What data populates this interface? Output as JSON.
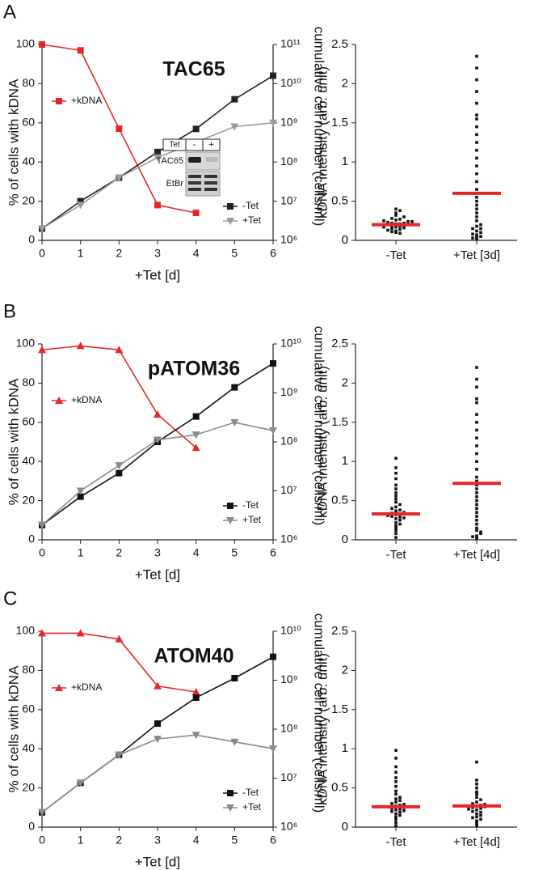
{
  "chart_data": [
    {
      "type": "line",
      "panel": "A",
      "title": "TAC65",
      "x": [
        0,
        1,
        2,
        3,
        4,
        5,
        6
      ],
      "xlim": [
        0,
        6
      ],
      "xticks": [
        0,
        1,
        2,
        3,
        4,
        5,
        6
      ],
      "ylim": [
        0,
        100
      ],
      "yticks": [
        0,
        20,
        40,
        60,
        80,
        100
      ],
      "y2scale": "log",
      "y2lim": [
        1000000,
        100000000000
      ],
      "y2ticks": [
        {
          "value": 1000000,
          "label": "10⁶"
        },
        {
          "value": 10000000,
          "label": "10⁷"
        },
        {
          "value": 100000000,
          "label": "10⁸"
        },
        {
          "value": 1000000000,
          "label": "10⁹"
        },
        {
          "value": 10000000000,
          "label": "10¹⁰"
        },
        {
          "value": 100000000000,
          "label": "10¹¹"
        }
      ],
      "xlabel": "+Tet [d]",
      "ylabel": "% of cells with kDNA",
      "y2label": "cumulative cell number (cells/ml)",
      "series": [
        {
          "name": "+kDNA",
          "color": "#e8262a",
          "marker": "square",
          "values": [
            100,
            97,
            57,
            18,
            14,
            null,
            null
          ]
        },
        {
          "name": "-Tet",
          "color": "#222222",
          "marker": "square",
          "axis": "y2",
          "values": [
            2000000,
            10000000,
            40000000,
            180000000,
            700000000,
            4000000000,
            16000000000
          ]
        },
        {
          "name": "+Tet",
          "color": "#9a9a9a",
          "marker": "triangle-down",
          "axis": "y2",
          "values": [
            2000000,
            8000000,
            40000000,
            130000000,
            320000000,
            800000000,
            1000000000
          ]
        }
      ],
      "inset": {
        "header": "Tet",
        "lanes": [
          "-",
          "+"
        ],
        "rows": [
          "TAC65",
          "EtBr"
        ]
      }
    },
    {
      "type": "strip",
      "categories": [
        "-Tet",
        "+Tet [3d]"
      ],
      "ylabel": "kDNA intensity (arb. unit)",
      "ylim": [
        0,
        2.5
      ],
      "yticks": [
        0,
        0.5,
        1,
        1.5,
        2,
        2.5
      ],
      "color": "#111111",
      "mean_color": "#e8262a",
      "groups": [
        {
          "mean": 0.2,
          "values": [
            0.1,
            0.12,
            0.14,
            0.15,
            0.16,
            0.17,
            0.18,
            0.18,
            0.19,
            0.2,
            0.2,
            0.21,
            0.21,
            0.22,
            0.22,
            0.23,
            0.24,
            0.25,
            0.26,
            0.27,
            0.28,
            0.3,
            0.32,
            0.35,
            0.38,
            0.4,
            0.13,
            0.17,
            0.2,
            0.24,
            0.09,
            0.11
          ]
        },
        {
          "mean": 0.6,
          "values": [
            0.02,
            0.04,
            0.05,
            0.07,
            0.1,
            0.12,
            0.15,
            0.18,
            0.2,
            0.25,
            0.3,
            0.35,
            0.4,
            0.45,
            0.5,
            0.55,
            0.6,
            0.65,
            0.75,
            0.85,
            0.95,
            1.05,
            1.15,
            1.25,
            1.35,
            1.45,
            1.55,
            1.6,
            1.75,
            1.9,
            2.05,
            2.2,
            2.35,
            0.08,
            0.03,
            0.15
          ]
        }
      ]
    },
    {
      "type": "line",
      "panel": "B",
      "title": "pATOM36",
      "x": [
        0,
        1,
        2,
        3,
        4,
        5,
        6
      ],
      "xlim": [
        0,
        6
      ],
      "xticks": [
        0,
        1,
        2,
        3,
        4,
        5,
        6
      ],
      "ylim": [
        0,
        100
      ],
      "yticks": [
        0,
        20,
        40,
        60,
        80,
        100
      ],
      "y2scale": "log",
      "y2lim": [
        1000000,
        10000000000
      ],
      "y2ticks": [
        {
          "value": 1000000,
          "label": "10⁶"
        },
        {
          "value": 10000000,
          "label": "10⁷"
        },
        {
          "value": 100000000,
          "label": "10⁸"
        },
        {
          "value": 1000000000,
          "label": "10⁹"
        },
        {
          "value": 10000000000,
          "label": "10¹⁰"
        }
      ],
      "xlabel": "+Tet [d]",
      "ylabel": "% of cells with kDNA",
      "y2label": "cumulative cell number (cells/ml)",
      "series": [
        {
          "name": "+kDNA",
          "color": "#e8262a",
          "marker": "triangle-up",
          "values": [
            97,
            99,
            97,
            64,
            47,
            null,
            null
          ]
        },
        {
          "name": "-Tet",
          "color": "#111111",
          "marker": "square",
          "axis": "y2",
          "values": [
            2000000,
            7600000,
            23000000,
            100000000,
            330000000,
            1300000000,
            4000000000
          ]
        },
        {
          "name": "+Tet",
          "color": "#8a8a8a",
          "marker": "triangle-down",
          "axis": "y2",
          "values": [
            2000000,
            10000000,
            33000000,
            110000000,
            140000000,
            250000000,
            170000000
          ]
        }
      ]
    },
    {
      "type": "strip",
      "categories": [
        "-Tet",
        "+Tet [4d]"
      ],
      "ylabel": "kDNA intensity (arb. unit)",
      "ylim": [
        0,
        2.5
      ],
      "yticks": [
        0,
        0.5,
        1,
        1.5,
        2,
        2.5
      ],
      "color": "#111111",
      "mean_color": "#e8262a",
      "groups": [
        {
          "mean": 0.33,
          "values": [
            0.03,
            0.08,
            0.12,
            0.15,
            0.18,
            0.2,
            0.22,
            0.25,
            0.27,
            0.29,
            0.3,
            0.32,
            0.33,
            0.34,
            0.35,
            0.37,
            0.38,
            0.4,
            0.42,
            0.45,
            0.48,
            0.52,
            0.56,
            0.6,
            0.65,
            0.7,
            0.78,
            0.85,
            0.92,
            1.04,
            0.28,
            0.31
          ]
        },
        {
          "mean": 0.72,
          "values": [
            0.02,
            0.05,
            0.08,
            0.12,
            0.15,
            0.2,
            0.25,
            0.3,
            0.35,
            0.4,
            0.45,
            0.5,
            0.55,
            0.6,
            0.65,
            0.7,
            0.75,
            0.8,
            0.9,
            1.0,
            1.1,
            1.2,
            1.3,
            1.4,
            1.5,
            1.6,
            1.75,
            1.8,
            1.95,
            2.05,
            2.2,
            0.1,
            0.04
          ]
        }
      ]
    },
    {
      "type": "line",
      "panel": "C",
      "title": "ATOM40",
      "x": [
        0,
        1,
        2,
        3,
        4,
        5,
        6
      ],
      "xlim": [
        0,
        6
      ],
      "xticks": [
        0,
        1,
        2,
        3,
        4,
        5,
        6
      ],
      "ylim": [
        0,
        100
      ],
      "yticks": [
        0,
        20,
        40,
        60,
        80,
        100
      ],
      "y2scale": "log",
      "y2lim": [
        1000000,
        10000000000
      ],
      "y2ticks": [
        {
          "value": 1000000,
          "label": "10⁶"
        },
        {
          "value": 10000000,
          "label": "10⁷"
        },
        {
          "value": 100000000,
          "label": "10⁸"
        },
        {
          "value": 1000000000,
          "label": "10⁹"
        },
        {
          "value": 10000000000,
          "label": "10¹⁰"
        }
      ],
      "xlabel": "+Tet [d]",
      "ylabel": "% of cells with kDNA",
      "y2label": "cumulative cell number (cells/ml)",
      "series": [
        {
          "name": "+kDNA",
          "color": "#e8262a",
          "marker": "triangle-up",
          "values": [
            99,
            99,
            96,
            72,
            69,
            null,
            null
          ]
        },
        {
          "name": "-Tet",
          "color": "#111111",
          "marker": "square",
          "axis": "y2",
          "values": [
            2000000,
            8000000,
            30000000,
            130000000,
            440000000,
            1100000000,
            3000000000
          ]
        },
        {
          "name": "+Tet",
          "color": "#8a8a8a",
          "marker": "triangle-down",
          "axis": "y2",
          "values": [
            2000000,
            8000000,
            30000000,
            63000000,
            76000000,
            55000000,
            40000000
          ]
        }
      ]
    },
    {
      "type": "strip",
      "categories": [
        "-Tet",
        "+Tet [4d]"
      ],
      "ylabel": "kDNA intensity (arb. unit)",
      "ylim": [
        0,
        2.5
      ],
      "yticks": [
        0,
        0.5,
        1,
        1.5,
        2,
        2.5
      ],
      "color": "#111111",
      "mean_color": "#e8262a",
      "groups": [
        {
          "mean": 0.26,
          "values": [
            0.02,
            0.06,
            0.1,
            0.13,
            0.15,
            0.17,
            0.19,
            0.2,
            0.22,
            0.23,
            0.24,
            0.25,
            0.26,
            0.27,
            0.28,
            0.3,
            0.32,
            0.34,
            0.36,
            0.38,
            0.42,
            0.46,
            0.52,
            0.58,
            0.63,
            0.7,
            0.77,
            0.88,
            0.98,
            0.21,
            0.29
          ]
        },
        {
          "mean": 0.27,
          "values": [
            0.02,
            0.05,
            0.08,
            0.1,
            0.13,
            0.15,
            0.17,
            0.19,
            0.2,
            0.22,
            0.24,
            0.25,
            0.26,
            0.27,
            0.28,
            0.3,
            0.32,
            0.35,
            0.38,
            0.42,
            0.45,
            0.5,
            0.55,
            0.6,
            0.83,
            0.23,
            0.29,
            0.12
          ]
        }
      ]
    }
  ]
}
